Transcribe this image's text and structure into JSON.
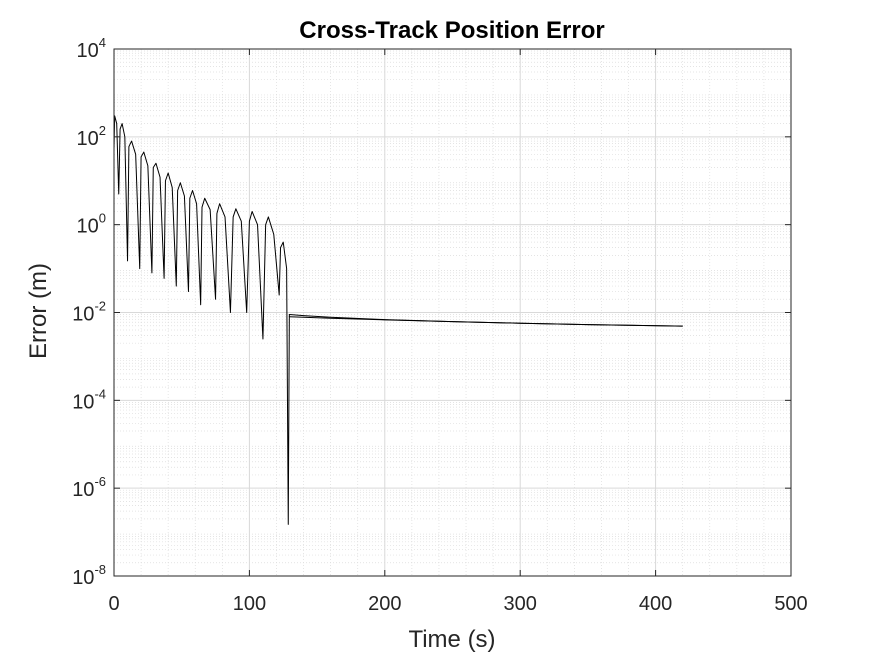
{
  "chart_data": {
    "type": "line",
    "title": "Cross-Track Position Error",
    "xlabel": "Time (s)",
    "ylabel": "Error (m)",
    "x_scale": "linear",
    "y_scale": "log",
    "xlim": [
      0,
      500
    ],
    "ylim": [
      1e-08,
      10000
    ],
    "x_ticks": [
      "0",
      "100",
      "200",
      "300",
      "400",
      "500"
    ],
    "y_ticks": [
      {
        "base": "10",
        "exp": "4"
      },
      {
        "base": "10",
        "exp": "2"
      },
      {
        "base": "10",
        "exp": "0"
      },
      {
        "base": "10",
        "exp": "-2"
      },
      {
        "base": "10",
        "exp": "-4"
      },
      {
        "base": "10",
        "exp": "-6"
      },
      {
        "base": "10",
        "exp": "-8"
      }
    ],
    "grid": true,
    "minor_grid": true,
    "legend": false,
    "line_color": "#000000",
    "series": [
      {
        "x": [
          0,
          0.5,
          2,
          3.5,
          4.5,
          6,
          8,
          10,
          11,
          13,
          16,
          19,
          20,
          22,
          25,
          28,
          29,
          31,
          34,
          37,
          38,
          40,
          43,
          46,
          47,
          49,
          52,
          55,
          56,
          58,
          61,
          64,
          65,
          67,
          71,
          75,
          76,
          78,
          82,
          86,
          88,
          90,
          94,
          98,
          100,
          102,
          106,
          110,
          112,
          114,
          118,
          122,
          123,
          125,
          127.5,
          128.7,
          129.5,
          140,
          160,
          200,
          250,
          300,
          350,
          420
        ],
        "y": [
          50,
          300,
          200,
          5,
          150,
          200,
          100,
          0.15,
          60,
          80,
          40,
          0.1,
          35,
          45,
          22,
          0.08,
          20,
          25,
          12,
          0.06,
          10,
          15,
          7,
          0.04,
          6,
          9,
          4.5,
          0.03,
          4,
          6,
          3,
          0.015,
          2.5,
          4,
          2.2,
          0.02,
          1.8,
          3,
          1.5,
          0.01,
          1.5,
          2.3,
          1.2,
          0.01,
          1.2,
          2,
          1,
          0.0025,
          1,
          1.5,
          0.6,
          0.025,
          0.3,
          0.4,
          0.1,
          1.5e-07,
          0.009,
          0.0085,
          0.0078,
          0.0069,
          0.0062,
          0.0057,
          0.0053,
          0.0049
        ]
      },
      {
        "x": [
          129.5,
          140,
          160,
          200,
          250,
          300,
          350,
          420
        ],
        "y": [
          0.008,
          0.0078,
          0.0074,
          0.0068,
          0.0062,
          0.0057,
          0.0053,
          0.0049
        ]
      }
    ]
  }
}
